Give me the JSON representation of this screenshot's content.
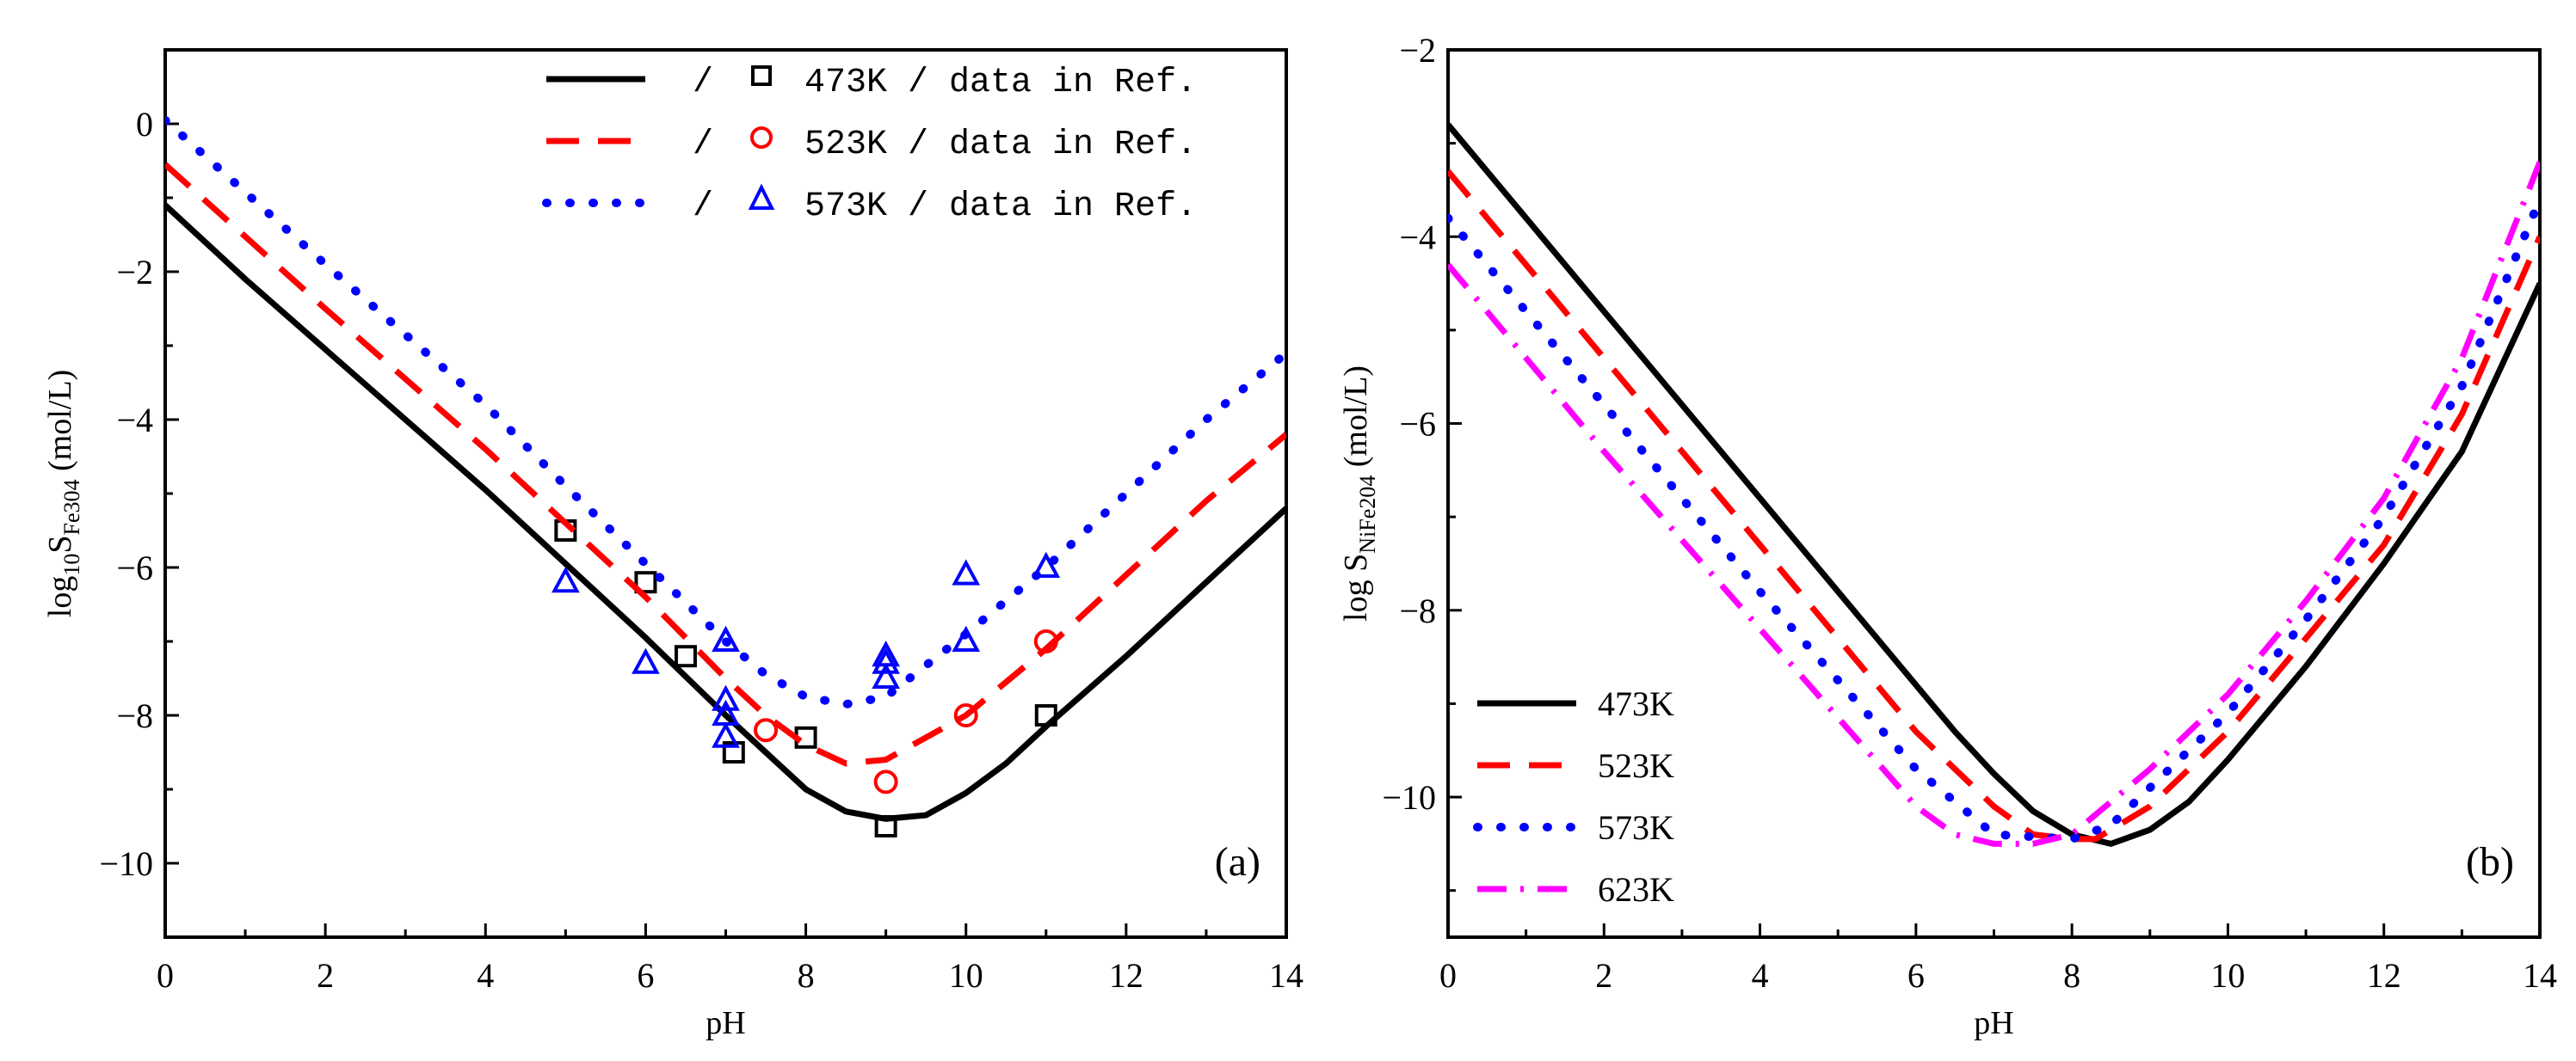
{
  "chart_data": [
    {
      "type": "line",
      "panel_label": "(a)",
      "xlabel": "pH",
      "ylabel": {
        "main": "log",
        "sub1": "10",
        "s": "S",
        "sub2": "Fe304",
        "unit": "(mol/L)"
      },
      "xlim": [
        0,
        14
      ],
      "ylim": [
        -11,
        1
      ],
      "xticks": [
        0,
        2,
        4,
        6,
        8,
        10,
        12,
        14
      ],
      "yticks": [
        0,
        -2,
        -4,
        -6,
        -8,
        -10
      ],
      "legend_position": "top-right",
      "legend_sep": "/",
      "series": [
        {
          "name": "473K / data in Ref.",
          "color": "#000000",
          "dash": "solid",
          "marker": "square",
          "x": [
            0,
            1,
            2,
            3,
            4,
            5,
            6,
            7,
            7.5,
            8,
            8.5,
            9,
            9.5,
            10,
            10.5,
            11,
            12,
            13,
            14
          ],
          "y": [
            -1.1,
            -2.1,
            -3.05,
            -4.0,
            -4.95,
            -5.95,
            -6.95,
            -8.0,
            -8.5,
            -9.0,
            -9.3,
            -9.4,
            -9.35,
            -9.05,
            -8.65,
            -8.15,
            -7.2,
            -6.2,
            -5.2
          ],
          "points": [
            [
              5,
              -5.5
            ],
            [
              6,
              -6.2
            ],
            [
              6.5,
              -7.2
            ],
            [
              7.1,
              -8.5
            ],
            [
              8,
              -8.3
            ],
            [
              9,
              -9.5
            ],
            [
              11,
              -8.0
            ]
          ]
        },
        {
          "name": "523K / data in Ref.",
          "color": "#ff0000",
          "dash": "dashed",
          "marker": "circle",
          "x": [
            0,
            2,
            4,
            5,
            6,
            7,
            7.5,
            8,
            8.5,
            9,
            10,
            11,
            12,
            13,
            14
          ],
          "y": [
            -0.55,
            -2.5,
            -4.4,
            -5.4,
            -6.4,
            -7.5,
            -8.0,
            -8.4,
            -8.65,
            -8.6,
            -8.0,
            -7.1,
            -6.1,
            -5.1,
            -4.2
          ],
          "points": [
            [
              7.5,
              -8.2
            ],
            [
              9,
              -8.9
            ],
            [
              10,
              -8.0
            ],
            [
              11,
              -7.0
            ]
          ]
        },
        {
          "name": "573K / data in Ref.",
          "color": "#0000ff",
          "dash": "dotted",
          "marker": "triangle",
          "x": [
            0,
            2,
            4,
            5,
            6,
            7,
            7.5,
            8,
            8.5,
            9,
            10,
            11,
            12,
            13,
            14
          ],
          "y": [
            0.05,
            -1.9,
            -3.8,
            -4.9,
            -5.95,
            -7.0,
            -7.45,
            -7.75,
            -7.85,
            -7.75,
            -6.9,
            -6.0,
            -5.0,
            -4.0,
            -3.1
          ],
          "points": [
            [
              5,
              -6.2
            ],
            [
              6,
              -7.3
            ],
            [
              7,
              -7.0
            ],
            [
              7,
              -7.8
            ],
            [
              7,
              -8.0
            ],
            [
              7,
              -8.3
            ],
            [
              9,
              -7.2
            ],
            [
              9,
              -7.3
            ],
            [
              9,
              -7.5
            ],
            [
              10,
              -6.1
            ],
            [
              10,
              -7.0
            ],
            [
              11,
              -6.0
            ]
          ]
        }
      ]
    },
    {
      "type": "line",
      "panel_label": "(b)",
      "xlabel": "pH",
      "ylabel": {
        "main": "log ",
        "sub1": "",
        "s": "S",
        "sub2": "NiFe204",
        "unit": "(mol/L)"
      },
      "xlim": [
        0,
        14
      ],
      "ylim": [
        -11.5,
        -2
      ],
      "xticks": [
        0,
        2,
        4,
        6,
        8,
        10,
        12,
        14
      ],
      "yticks": [
        -2,
        -4,
        -6,
        -8,
        -10
      ],
      "legend_position": "bottom-left",
      "series": [
        {
          "name": "473K",
          "color": "#000000",
          "dash": "solid",
          "x": [
            0,
            2,
            4,
            6,
            6.5,
            7,
            7.5,
            8,
            8.5,
            9,
            9.5,
            10,
            11,
            12,
            12.5,
            13,
            14
          ],
          "y": [
            -2.8,
            -4.8,
            -6.8,
            -8.8,
            -9.3,
            -9.75,
            -10.15,
            -10.4,
            -10.5,
            -10.35,
            -10.05,
            -9.6,
            -8.6,
            -7.5,
            -6.9,
            -6.3,
            -4.5
          ]
        },
        {
          "name": "523K",
          "color": "#ff0000",
          "dash": "dashed",
          "x": [
            0,
            2,
            4,
            6,
            7,
            7.5,
            8,
            8.3,
            9,
            10,
            11,
            12,
            13,
            14
          ],
          "y": [
            -3.3,
            -5.3,
            -7.3,
            -9.3,
            -10.1,
            -10.4,
            -10.45,
            -10.45,
            -10.1,
            -9.3,
            -8.3,
            -7.3,
            -5.9,
            -4.0
          ]
        },
        {
          "name": "573K",
          "color": "#0000ff",
          "dash": "dotted",
          "x": [
            0,
            2,
            4,
            6,
            7,
            8,
            8.5,
            9,
            10,
            11,
            12,
            13,
            14
          ],
          "y": [
            -3.8,
            -5.8,
            -7.8,
            -9.7,
            -10.4,
            -10.45,
            -10.3,
            -9.9,
            -9.1,
            -8.1,
            -7.0,
            -5.6,
            -3.6
          ]
        },
        {
          "name": "623K",
          "color": "#ff00ff",
          "dash": "dashdot",
          "x": [
            0,
            2,
            4,
            6,
            6.5,
            7,
            7.5,
            8,
            9,
            10,
            11,
            12,
            13,
            14
          ],
          "y": [
            -4.3,
            -6.3,
            -8.2,
            -10.1,
            -10.4,
            -10.5,
            -10.5,
            -10.4,
            -9.7,
            -8.9,
            -7.9,
            -6.8,
            -5.3,
            -3.2
          ]
        }
      ]
    }
  ]
}
